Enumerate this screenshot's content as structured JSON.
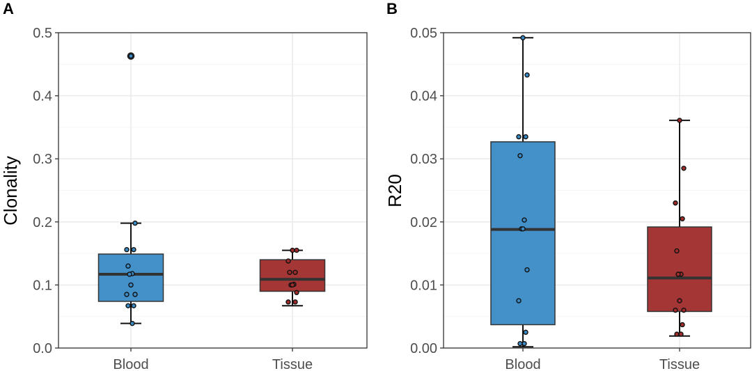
{
  "colors": {
    "blood": "#3a8ac6",
    "tissue": "#a02b2b",
    "grid_major": "#ebebeb",
    "grid_minor": "#f4f4f4",
    "border": "#333333",
    "median": "#333333"
  },
  "panels": [
    {
      "label": "A",
      "chart_data": {
        "type": "box",
        "categories": [
          "Blood",
          "Tissue"
        ],
        "ylabel": "Clonality",
        "xlabel": "",
        "ylim": [
          0,
          0.5
        ],
        "yticks": [
          0,
          0.1,
          0.2,
          0.3,
          0.4,
          0.5
        ],
        "ytick_labels": [
          "0.0",
          "0.1",
          "0.2",
          "0.3",
          "0.4",
          "0.5"
        ],
        "boxes": [
          {
            "name": "Blood",
            "q1": 0.074,
            "median": 0.117,
            "q3": 0.149,
            "whisker_low": 0.039,
            "whisker_high": 0.198,
            "outliers": [
              0.463
            ],
            "points": [
              0.463,
              0.198,
              0.156,
              0.156,
              0.13,
              0.118,
              0.117,
              0.1,
              0.085,
              0.085,
              0.067,
              0.067,
              0.039
            ]
          },
          {
            "name": "Tissue",
            "q1": 0.09,
            "median": 0.109,
            "q3": 0.14,
            "whisker_low": 0.067,
            "whisker_high": 0.155,
            "outliers": [],
            "points": [
              0.155,
              0.155,
              0.138,
              0.12,
              0.12,
              0.101,
              0.1,
              0.1,
              0.088,
              0.073,
              0.073
            ]
          }
        ]
      }
    },
    {
      "label": "B",
      "chart_data": {
        "type": "box",
        "categories": [
          "Blood",
          "Tissue"
        ],
        "ylabel": "R20",
        "xlabel": "",
        "ylim": [
          0,
          0.05
        ],
        "yticks": [
          0,
          0.01,
          0.02,
          0.03,
          0.04,
          0.05
        ],
        "ytick_labels": [
          "0.00",
          "0.01",
          "0.02",
          "0.03",
          "0.04",
          "0.05"
        ],
        "boxes": [
          {
            "name": "Blood",
            "q1": 0.0037,
            "median": 0.0188,
            "q3": 0.0327,
            "whisker_low": 0.0002,
            "whisker_high": 0.0492,
            "outliers": [],
            "points": [
              0.0492,
              0.0433,
              0.0335,
              0.0335,
              0.0305,
              0.0203,
              0.0189,
              0.0189,
              0.0124,
              0.0075,
              0.0025,
              0.0007,
              0.0007
            ]
          },
          {
            "name": "Tissue",
            "q1": 0.0058,
            "median": 0.0111,
            "q3": 0.0192,
            "whisker_low": 0.0019,
            "whisker_high": 0.0361,
            "outliers": [],
            "points": [
              0.0361,
              0.0285,
              0.023,
              0.0205,
              0.0154,
              0.0117,
              0.0117,
              0.0075,
              0.006,
              0.006,
              0.0037,
              0.0022,
              0.0022
            ]
          }
        ]
      }
    }
  ]
}
